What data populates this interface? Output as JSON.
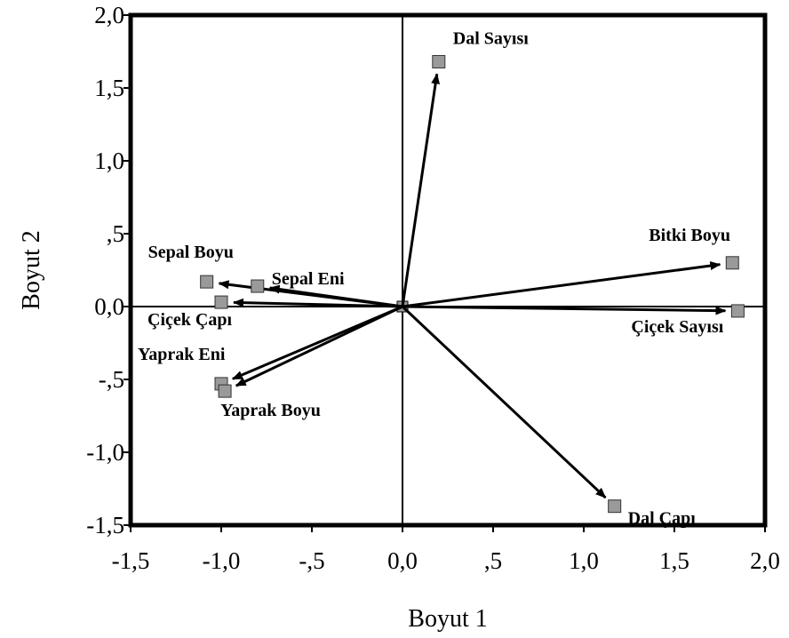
{
  "chart_data": {
    "type": "biplot",
    "xlabel": "Boyut 1",
    "ylabel": "Boyut 2",
    "xlim": [
      -1.5,
      2.0
    ],
    "ylim": [
      -1.5,
      2.0
    ],
    "xticks": [
      "-1,5",
      "-1,0",
      "-,5",
      "0,0",
      ",5",
      "1,0",
      "1,5",
      "2,0"
    ],
    "yticks": [
      "2,0",
      "1,5",
      "1,0",
      ",5",
      "0,0",
      "-,5",
      "-1,0",
      "-1,5"
    ],
    "vectors": [
      {
        "label": "Dal Sayısı",
        "x": 0.2,
        "y": 1.68
      },
      {
        "label": "Bitki Boyu",
        "x": 1.82,
        "y": 0.3
      },
      {
        "label": "Çiçek Sayısı",
        "x": 1.85,
        "y": -0.03
      },
      {
        "label": "Dal Çapı",
        "x": 1.17,
        "y": -1.37
      },
      {
        "label": "Sepal Boyu",
        "x": -1.08,
        "y": 0.17
      },
      {
        "label": "Sepal Eni",
        "x": -0.8,
        "y": 0.14
      },
      {
        "label": "Çiçek Çapı",
        "x": -1.0,
        "y": 0.03
      },
      {
        "label": "Yaprak Eni",
        "x": -1.0,
        "y": -0.53
      },
      {
        "label": "Yaprak Boyu",
        "x": -0.98,
        "y": -0.58
      }
    ]
  }
}
